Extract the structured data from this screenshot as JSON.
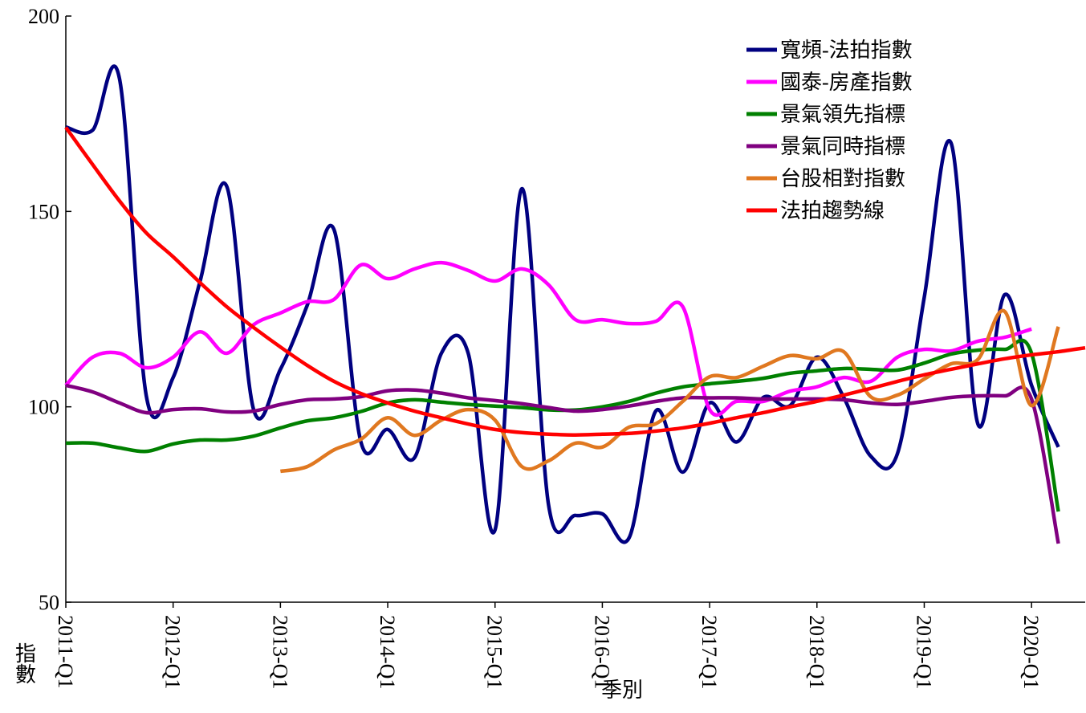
{
  "chart_data": {
    "type": "line",
    "x_label": "季別",
    "y_label": "指數",
    "categories": [
      "2011-Q1",
      null,
      null,
      null,
      "2012-Q1",
      null,
      null,
      null,
      "2013-Q1",
      null,
      null,
      null,
      "2014-Q1",
      null,
      null,
      null,
      "2015-Q1",
      null,
      null,
      null,
      "2016-Q1",
      null,
      null,
      null,
      "2017-Q1",
      null,
      null,
      null,
      "2018-Q1",
      null,
      null,
      null,
      "2019-Q1",
      null,
      null,
      null,
      "2020-Q1",
      null,
      null
    ],
    "ylim": [
      50,
      200
    ],
    "yticks": [
      50,
      100,
      150,
      200
    ],
    "grid": false,
    "legend": "upper right",
    "series": [
      {
        "name": "寬頻-法拍指數",
        "color": "#000080",
        "values": [
          171.6,
          170.8,
          184,
          102.8,
          107.5,
          132,
          156.4,
          99.3,
          109.6,
          126,
          145.3,
          91,
          94.2,
          87,
          113.7,
          113.7,
          68.5,
          155.8,
          74.7,
          72.2,
          72.6,
          66.5,
          99,
          83.3,
          101,
          91,
          102.4,
          100.3,
          112.7,
          102.4,
          87.4,
          88,
          128,
          167.5,
          95.6,
          128.7,
          105.5,
          89.7,
          null
        ]
      },
      {
        "name": "國泰-房產指數",
        "color": "#ff00ff",
        "values": [
          105.5,
          112.7,
          113.7,
          110,
          112.7,
          119.2,
          113.7,
          121,
          124,
          126.9,
          127.5,
          136.3,
          132.8,
          135.3,
          136.9,
          134.9,
          132.2,
          135.3,
          131.2,
          122.3,
          122.3,
          121.3,
          121.9,
          125.6,
          99.3,
          101.4,
          101.4,
          104,
          105.1,
          107.5,
          106.5,
          112.7,
          114.7,
          114.3,
          116.8,
          117.8,
          119.9,
          null,
          null
        ]
      },
      {
        "name": "景氣領先指標",
        "color": "#008000",
        "values": [
          90.7,
          90.7,
          89.5,
          88.6,
          90.5,
          91.5,
          91.5,
          92.5,
          94.6,
          96.4,
          97.2,
          98.8,
          101,
          101.8,
          101.2,
          100.6,
          100.2,
          99.8,
          99.2,
          99.2,
          100,
          101.4,
          103.5,
          105.1,
          105.9,
          106.5,
          107.3,
          108.6,
          109.2,
          109.8,
          109.6,
          109.4,
          111.2,
          113.5,
          114.5,
          114.7,
          113.7,
          73.2,
          null
        ]
      },
      {
        "name": "景氣同時指標",
        "color": "#800080",
        "values": [
          105.5,
          103.8,
          101,
          98.5,
          99.3,
          99.5,
          98.7,
          98.9,
          100.6,
          101.8,
          102,
          102.6,
          104.1,
          104.3,
          103.5,
          102.3,
          101.6,
          100.8,
          99.8,
          98.9,
          99.3,
          100.2,
          101.4,
          102.3,
          102.3,
          102.3,
          102,
          102,
          102,
          101.8,
          101,
          100.6,
          101.4,
          102.4,
          102.8,
          102.8,
          102,
          65,
          null
        ]
      },
      {
        "name": "台股相對指數",
        "color": "#e07820",
        "values": [
          null,
          null,
          null,
          null,
          null,
          null,
          null,
          null,
          83.5,
          84.7,
          89,
          91.7,
          97.2,
          92.7,
          96.6,
          99.3,
          96.6,
          84.7,
          86.2,
          90.7,
          89.7,
          94.8,
          95.7,
          101.4,
          107.7,
          107.5,
          110.4,
          113.1,
          112.3,
          114.1,
          102.6,
          103,
          107.1,
          111,
          112.1,
          124.4,
          100.3,
          120.5,
          null
        ]
      },
      {
        "name": "法拍趨勢線",
        "color": "#ff0000",
        "values": [
          171.5,
          162,
          152.7,
          144.5,
          138.4,
          131.8,
          125.6,
          120.3,
          115.3,
          110.6,
          106.5,
          103.4,
          101,
          98.9,
          97.2,
          95.6,
          94.2,
          93.4,
          93,
          92.8,
          93,
          93.2,
          93.8,
          94.6,
          95.8,
          97.2,
          98.5,
          100,
          101.4,
          103,
          104.7,
          106.5,
          108.2,
          109.6,
          111,
          112.3,
          113.3,
          114.1,
          115.1
        ]
      }
    ]
  }
}
